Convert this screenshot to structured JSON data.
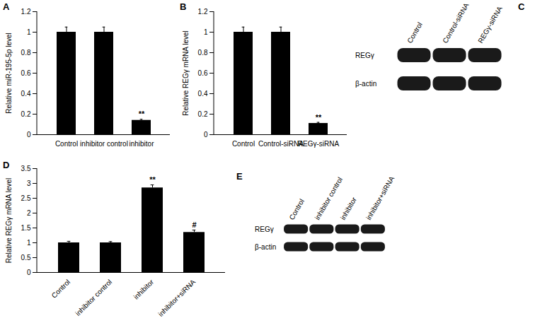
{
  "chart_data": [
    {
      "panel_label": "A",
      "type": "bar",
      "y_label": "Relative miR-195-5p level",
      "categories": [
        "Control",
        "inhibitor control",
        "inhibitor"
      ],
      "values": [
        1,
        1,
        0.14
      ],
      "errors": [
        0.05,
        0.05,
        0.01
      ],
      "annotations": [
        null,
        null,
        "**"
      ],
      "color": "#000000",
      "ylim": [
        0,
        1.2
      ],
      "yticks": [
        0,
        0.2,
        0.4,
        0.6,
        0.8,
        1,
        1.2
      ]
    },
    {
      "panel_label": "B",
      "type": "bar",
      "y_label": "Relative REGγ mRNA level",
      "categories": [
        "Control",
        "Control-siRNA",
        "REGγ-siRNA"
      ],
      "values": [
        1,
        1,
        0.11
      ],
      "errors": [
        0.05,
        0.05,
        0.01
      ],
      "annotations": [
        null,
        null,
        "**"
      ],
      "color": "#000000",
      "ylim": [
        0,
        1.2
      ],
      "yticks": [
        0,
        0.2,
        0.4,
        0.6,
        0.8,
        1,
        1.2
      ]
    },
    {
      "panel_label": "D",
      "type": "bar",
      "y_label": "Relative REGγ mRNA level",
      "categories": [
        "Control",
        "inhibitor control",
        "inhibitor",
        "inhibitor+siRNA"
      ],
      "values": [
        1,
        1,
        2.85,
        1.35
      ],
      "errors": [
        0.05,
        0.04,
        0.1,
        0.08
      ],
      "annotations": [
        null,
        null,
        "**",
        "#"
      ],
      "color": "#000000",
      "ylim": [
        0,
        3.5
      ],
      "yticks": [
        0,
        0.5,
        1,
        1.5,
        2,
        2.5,
        3,
        3.5
      ]
    }
  ],
  "blots": [
    {
      "panel_label": "C",
      "lanes": [
        "Control",
        "Control-siRNA",
        "REGγ-siRNA"
      ],
      "rows": [
        "REGγ",
        "β-actin"
      ]
    },
    {
      "panel_label": "E",
      "lanes": [
        "Control",
        "inhibitor control",
        "inhibitor",
        "inhibitor+siRNA"
      ],
      "rows": [
        "REGγ",
        "β-actin"
      ]
    }
  ]
}
